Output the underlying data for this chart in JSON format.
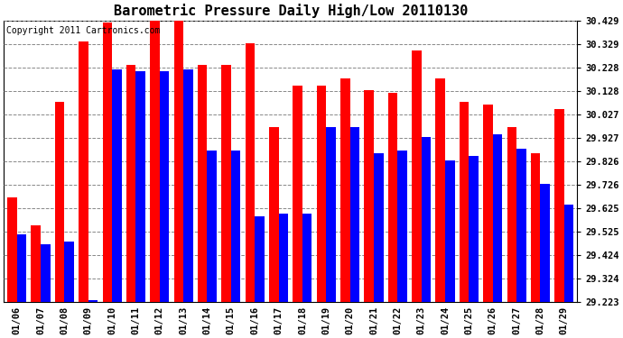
{
  "title": "Barometric Pressure Daily High/Low 20110130",
  "copyright": "Copyright 2011 Cartronics.com",
  "dates": [
    "01/06",
    "01/07",
    "01/08",
    "01/09",
    "01/10",
    "01/11",
    "01/12",
    "01/13",
    "01/14",
    "01/15",
    "01/16",
    "01/17",
    "01/18",
    "01/19",
    "01/20",
    "01/21",
    "01/22",
    "01/23",
    "01/24",
    "01/25",
    "01/26",
    "01/27",
    "01/28",
    "01/29"
  ],
  "highs": [
    29.67,
    29.55,
    30.08,
    30.34,
    30.42,
    30.24,
    30.43,
    30.46,
    30.24,
    30.24,
    30.33,
    29.97,
    30.15,
    30.15,
    30.18,
    30.13,
    30.12,
    30.3,
    30.18,
    30.08,
    30.07,
    29.97,
    29.86,
    30.05
  ],
  "lows": [
    29.51,
    29.47,
    29.48,
    29.23,
    30.22,
    30.21,
    30.21,
    30.22,
    29.87,
    29.87,
    29.59,
    29.6,
    29.6,
    29.97,
    29.97,
    29.86,
    29.87,
    29.93,
    29.83,
    29.85,
    29.94,
    29.88,
    29.73,
    29.64
  ],
  "high_color": "#ff0000",
  "low_color": "#0000ff",
  "bg_color": "#ffffff",
  "plot_bg_color": "#ffffff",
  "grid_color": "#888888",
  "ymin": 29.223,
  "ymax": 30.429,
  "yticks": [
    29.223,
    29.324,
    29.424,
    29.525,
    29.625,
    29.726,
    29.826,
    29.927,
    30.027,
    30.128,
    30.228,
    30.329,
    30.429
  ],
  "ytick_labels": [
    "29.223",
    "29.324",
    "29.424",
    "29.525",
    "29.625",
    "29.726",
    "29.826",
    "29.927",
    "30.027",
    "30.128",
    "30.228",
    "30.329",
    "30.429"
  ],
  "title_fontsize": 11,
  "copyright_fontsize": 7,
  "tick_fontsize": 7.5,
  "bar_width": 0.4
}
